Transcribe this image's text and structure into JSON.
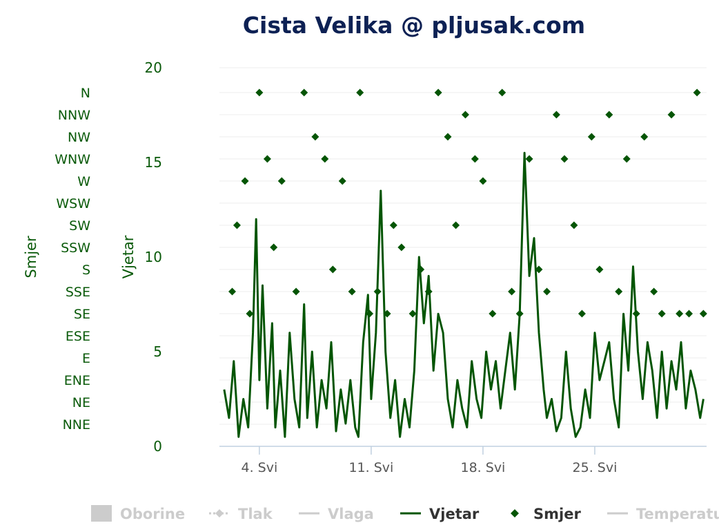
{
  "colors": {
    "series": "#045504",
    "title": "#0d2154",
    "axis_label": "#0a5a0a",
    "legend_inactive": "#cccccc",
    "legend_active": "#333333",
    "grid": "#eeeeee",
    "x_tick_label": "#555555"
  },
  "chart_data": {
    "type": "line",
    "title": "Cista Velika @ pljusak.com",
    "y_axis": {
      "label": "Vjetar",
      "range": [
        0,
        20
      ],
      "ticks": [
        "0",
        "5",
        "10",
        "15",
        "20"
      ]
    },
    "direction_axis": {
      "label": "Smjer",
      "categories": [
        "NNE",
        "NE",
        "ENE",
        "E",
        "ESE",
        "SE",
        "SSE",
        "S",
        "SSW",
        "SW",
        "WSW",
        "W",
        "WNW",
        "NW",
        "NNW",
        "N"
      ]
    },
    "x_axis": {
      "range_days": [
        1.5,
        32.0
      ],
      "ticks": [
        {
          "day": 4,
          "label": "4. Svi"
        },
        {
          "day": 11,
          "label": "11. Svi"
        },
        {
          "day": 18,
          "label": "18. Svi"
        },
        {
          "day": 25,
          "label": "25. Svi"
        }
      ]
    },
    "grid": true,
    "legend_position": "bottom",
    "legend": [
      {
        "label": "Oborine",
        "active": false,
        "symbol": "bar"
      },
      {
        "label": "Tlak",
        "active": false,
        "symbol": "dashed-diamond"
      },
      {
        "label": "Vlaga",
        "active": false,
        "symbol": "line"
      },
      {
        "label": "Vjetar",
        "active": true,
        "symbol": "line"
      },
      {
        "label": "Smjer",
        "active": true,
        "symbol": "diamond"
      },
      {
        "label": "Temperatura",
        "active": false,
        "symbol": "line"
      }
    ],
    "series": [
      {
        "name": "Vjetar",
        "kind": "line",
        "x": [
          1.8,
          2.1,
          2.4,
          2.7,
          3.0,
          3.3,
          3.6,
          3.8,
          4.0,
          4.2,
          4.5,
          4.8,
          5.0,
          5.3,
          5.6,
          5.9,
          6.2,
          6.5,
          6.8,
          7.0,
          7.3,
          7.6,
          7.9,
          8.2,
          8.5,
          8.8,
          9.1,
          9.4,
          9.7,
          10.0,
          10.2,
          10.5,
          10.8,
          11.0,
          11.3,
          11.6,
          11.9,
          12.2,
          12.5,
          12.8,
          13.1,
          13.4,
          13.7,
          14.0,
          14.3,
          14.6,
          14.9,
          15.2,
          15.5,
          15.8,
          16.1,
          16.4,
          16.7,
          17.0,
          17.3,
          17.6,
          17.9,
          18.2,
          18.5,
          18.8,
          19.1,
          19.4,
          19.7,
          20.0,
          20.3,
          20.6,
          20.9,
          21.2,
          21.5,
          21.8,
          22.0,
          22.3,
          22.6,
          22.9,
          23.2,
          23.5,
          23.8,
          24.1,
          24.4,
          24.7,
          25.0,
          25.3,
          25.6,
          25.9,
          26.2,
          26.5,
          26.8,
          27.1,
          27.4,
          27.7,
          28.0,
          28.3,
          28.6,
          28.9,
          29.2,
          29.5,
          29.8,
          30.1,
          30.4,
          30.7,
          31.0,
          31.3,
          31.6,
          31.8
        ],
        "values": [
          3.0,
          1.5,
          4.5,
          0.5,
          2.5,
          1.0,
          6.0,
          12.0,
          3.5,
          8.5,
          2.0,
          6.5,
          1.0,
          4.0,
          0.5,
          6.0,
          2.5,
          1.0,
          7.5,
          1.5,
          5.0,
          1.0,
          3.5,
          2.0,
          5.5,
          0.8,
          3.0,
          1.2,
          3.5,
          1.0,
          0.5,
          5.5,
          8.0,
          2.5,
          6.0,
          13.5,
          5.0,
          1.5,
          3.5,
          0.5,
          2.5,
          1.0,
          4.0,
          10.0,
          6.5,
          9.0,
          4.0,
          7.0,
          6.0,
          2.5,
          1.0,
          3.5,
          2.0,
          1.0,
          4.5,
          2.5,
          1.5,
          5.0,
          3.0,
          4.5,
          2.0,
          4.0,
          6.0,
          3.0,
          7.0,
          15.5,
          9.0,
          11.0,
          6.0,
          3.0,
          1.5,
          2.5,
          0.8,
          1.5,
          5.0,
          2.0,
          0.5,
          1.0,
          3.0,
          1.5,
          6.0,
          3.5,
          4.5,
          5.5,
          2.5,
          1.0,
          7.0,
          4.0,
          9.5,
          5.0,
          2.5,
          5.5,
          4.0,
          1.5,
          5.0,
          2.0,
          4.5,
          3.0,
          5.5,
          2.0,
          4.0,
          3.0,
          1.5,
          2.5
        ]
      },
      {
        "name": "Smjer",
        "kind": "scatter",
        "x": [
          2.3,
          2.6,
          3.1,
          3.4,
          4.0,
          4.5,
          4.9,
          5.4,
          6.3,
          6.8,
          7.5,
          8.1,
          8.6,
          9.2,
          9.8,
          10.3,
          10.9,
          11.4,
          12.0,
          12.4,
          12.9,
          13.6,
          14.1,
          14.6,
          15.2,
          15.8,
          16.3,
          16.9,
          17.5,
          18.0,
          18.6,
          19.2,
          19.8,
          20.3,
          20.9,
          21.5,
          22.0,
          22.6,
          23.1,
          23.7,
          24.2,
          24.8,
          25.3,
          25.9,
          26.5,
          27.0,
          27.6,
          28.1,
          28.7,
          29.2,
          29.8,
          30.3,
          30.9,
          31.4,
          31.8
        ],
        "directions": [
          "SSE",
          "SW",
          "W",
          "SE",
          "N",
          "WNW",
          "SSW",
          "W",
          "SSE",
          "N",
          "NW",
          "WNW",
          "S",
          "W",
          "SSE",
          "N",
          "SE",
          "SSE",
          "SE",
          "SW",
          "SSW",
          "SE",
          "S",
          "SSE",
          "N",
          "NW",
          "SW",
          "NNW",
          "WNW",
          "W",
          "SE",
          "N",
          "SSE",
          "SE",
          "WNW",
          "S",
          "SSE",
          "NNW",
          "WNW",
          "SW",
          "SE",
          "NW",
          "S",
          "NNW",
          "SSE",
          "WNW",
          "SE",
          "NW",
          "SSE",
          "SE",
          "NNW",
          "SE",
          "SE",
          "N",
          "SE"
        ]
      }
    ]
  }
}
